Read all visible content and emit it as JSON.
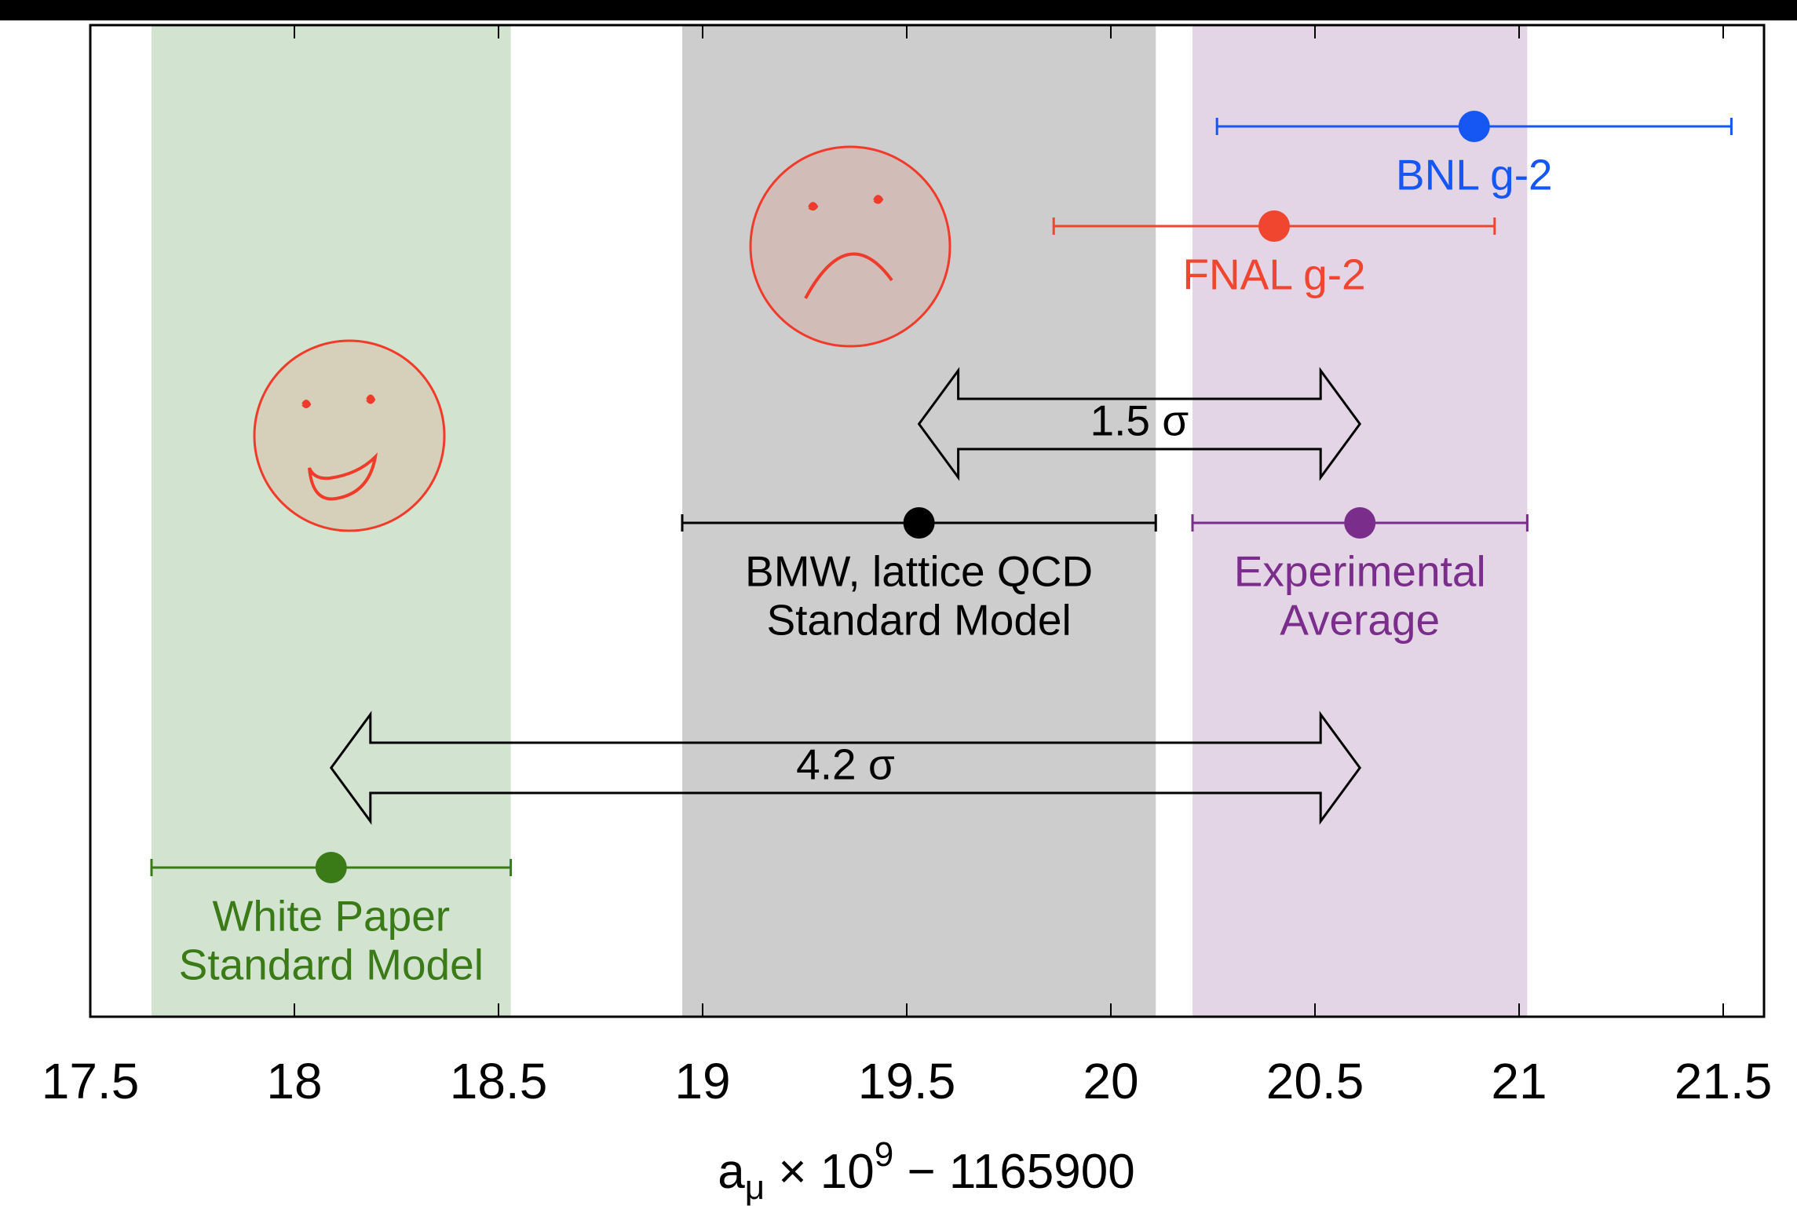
{
  "chart_data": {
    "type": "errorbar",
    "xlabel": [
      "a",
      "μ",
      " × 10",
      "9",
      " − 1165900"
    ],
    "xlim": [
      17.5,
      21.6
    ],
    "xticks": [
      17.5,
      18,
      18.5,
      19,
      19.5,
      20,
      20.5,
      21,
      21.5
    ],
    "series": [
      {
        "name": [
          "BNL g-2"
        ],
        "color": "#1656f2",
        "value": 20.89,
        "error": 0.63,
        "band": false
      },
      {
        "name": [
          "FNAL g-2"
        ],
        "color": "#f0452f",
        "value": 20.4,
        "error": 0.54,
        "band": false
      },
      {
        "name": [
          "BMW, lattice QCD",
          "Standard Model"
        ],
        "color": "#000000",
        "value": 19.53,
        "error": 0.58,
        "band": true,
        "band_color": "#cdcdcd"
      },
      {
        "name": [
          "Experimental",
          "Average"
        ],
        "color": "#7a2d8a",
        "value": 20.61,
        "error": 0.41,
        "band": true,
        "band_color": "#e3d4e6"
      },
      {
        "name": [
          "White Paper",
          "Standard Model"
        ],
        "color": "#3a7a17",
        "value": 18.09,
        "error": 0.44,
        "band": true,
        "band_color": "#d2e4cf"
      }
    ],
    "annotations": [
      {
        "text": "1.5 σ"
      },
      {
        "text": "4.2 σ"
      }
    ]
  }
}
